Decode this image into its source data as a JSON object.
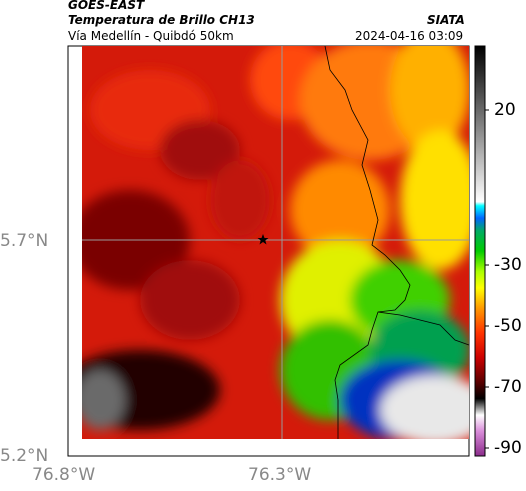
{
  "header": {
    "satellite": "GOES-EAST",
    "product": "Temperatura de Brillo CH13",
    "region": "Vía Medellín - Quibdó 50km",
    "institution": "SIATA",
    "timestamp": "2024-04-16 03:09"
  },
  "map": {
    "lat_labels": [
      "5.7°N",
      "5.2°N"
    ],
    "lon_labels": [
      "76.8°W",
      "76.3°W"
    ],
    "marker": "star",
    "marker_lat": 5.7,
    "marker_lon": -76.35
  },
  "colorbar": {
    "ticks": [
      "20",
      "-30",
      "-50",
      "-70",
      "-90"
    ]
  },
  "colors": {
    "grid": "#9a9a9a",
    "border_line": "#000000"
  }
}
